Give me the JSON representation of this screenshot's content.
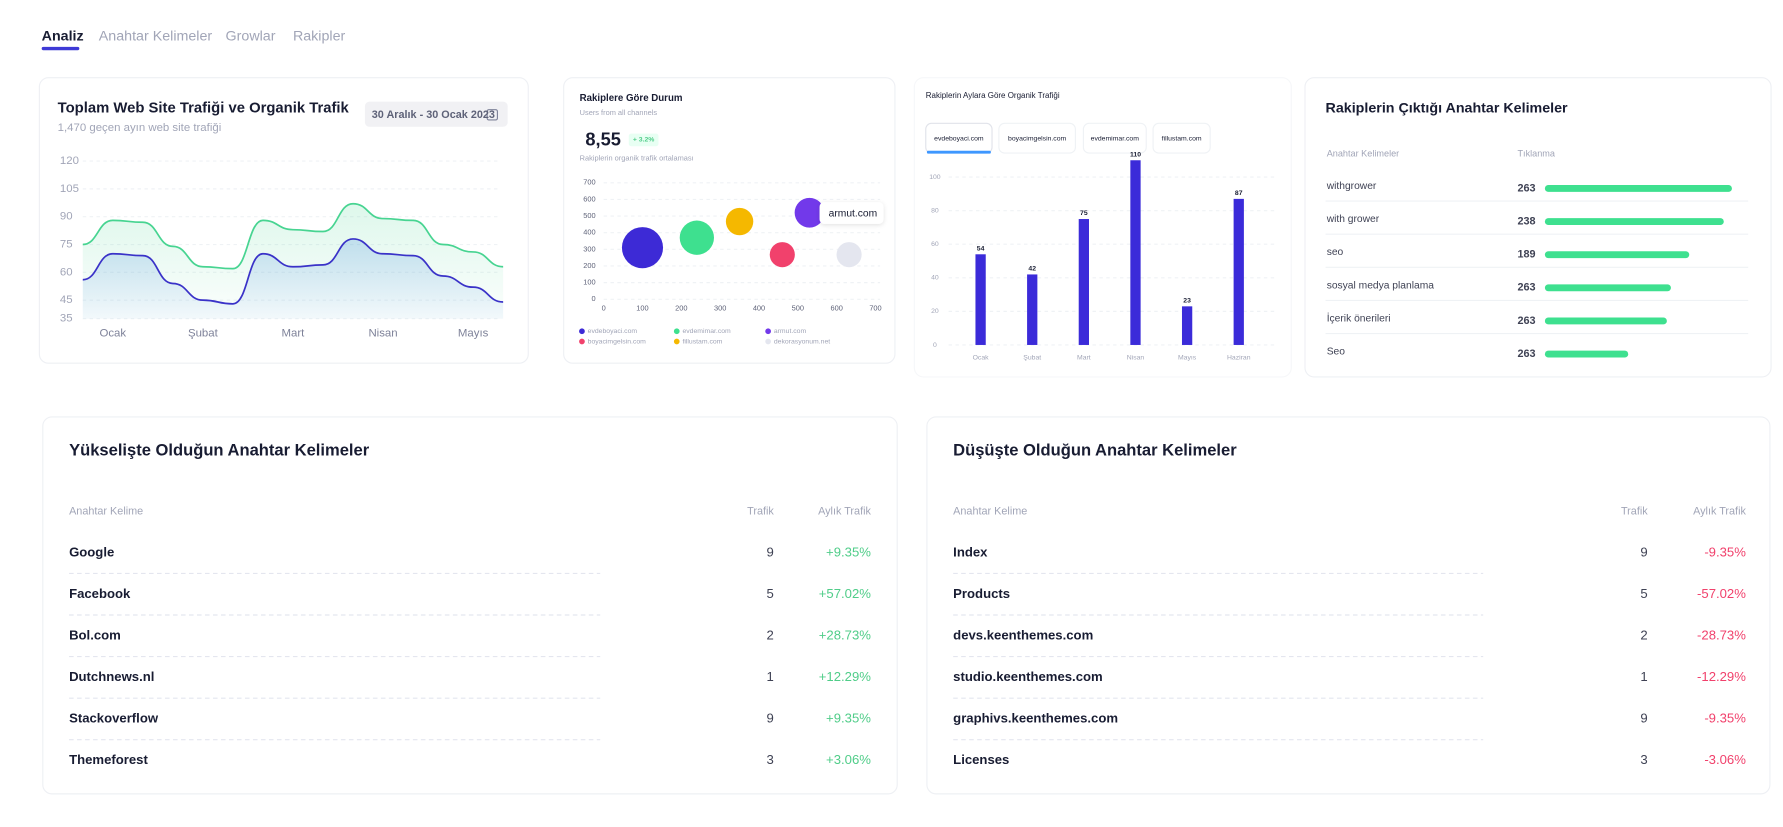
{
  "tabs": [
    "Analiz",
    "Anahtar Kelimeler",
    "Growlar",
    "Rakipler"
  ],
  "chart_data": [
    {
      "type": "line",
      "title": "Toplam Web Site Trafiği ve Organik Trafik",
      "subtitle": "1,470 geçen ayın web site trafiği",
      "date_range": "30 Aralık - 30 Ocak 2023",
      "categories": [
        null,
        "Ocak",
        null,
        null,
        "Şubat",
        null,
        null,
        "Mart",
        null,
        null,
        "Nisan",
        null,
        null,
        "Mayıs",
        null
      ],
      "series": [
        {
          "name": "Web Site Trafiği",
          "color": "#47d491",
          "values": [
            75,
            88,
            87,
            74,
            63,
            62,
            88,
            83,
            82,
            97,
            89,
            88,
            75,
            71,
            63
          ]
        },
        {
          "name": "Organik Trafik",
          "color": "#3a32c8",
          "values": [
            56,
            70,
            69,
            54,
            45,
            43,
            70,
            63,
            64,
            78,
            70,
            69,
            58,
            52,
            44
          ]
        }
      ],
      "ylim": [
        35,
        120
      ],
      "yticks": [
        35,
        45,
        60,
        75,
        90,
        105,
        120
      ],
      "grid": true
    },
    {
      "type": "bubble",
      "title": "Rakiplere Göre Durum",
      "subtitle": "Users from all channels",
      "value_label": "8,55",
      "badge": "+ 3.2%",
      "caption": "Rakiplerin organik trafik ortalaması",
      "series": [
        {
          "name": "evdeboyaci.com",
          "color": "#3d2ad6",
          "x": 100,
          "y": 310,
          "size": 18
        },
        {
          "name": "evdemimar.com",
          "color": "#3ee08f",
          "x": 240,
          "y": 370,
          "size": 15
        },
        {
          "name": "armut.com",
          "color": "#7239ea",
          "x": 530,
          "y": 520,
          "size": 13
        },
        {
          "name": "boyacimgelsin.com",
          "color": "#f1416c",
          "x": 460,
          "y": 268,
          "size": 11
        },
        {
          "name": "fillustam.com",
          "color": "#f5b800",
          "x": 350,
          "y": 467,
          "size": 12
        },
        {
          "name": "dekorasyonum.net",
          "color": "#e4e6ef",
          "x": 632,
          "y": 268,
          "size": 11
        }
      ],
      "xlim": [
        0,
        700
      ],
      "xticks": [
        0,
        100,
        200,
        300,
        400,
        500,
        600,
        700
      ],
      "ylim": [
        0,
        700
      ],
      "yticks": [
        0,
        100,
        200,
        300,
        400,
        500,
        600,
        700
      ],
      "grid": true
    },
    {
      "type": "bar",
      "title": "Rakiplerin Aylara Göre Organik Trafiği",
      "tabs": [
        "evdeboyaci.com",
        "boyacimgelsin.com",
        "evdemimar.com",
        "fillustam.com"
      ],
      "categories": [
        "Ocak",
        "Şubat",
        "Mart",
        "Nisan",
        "Mayıs",
        "Haziran"
      ],
      "values": [
        54,
        42,
        75,
        110,
        23,
        87
      ],
      "color": "#3b2bd9",
      "ylim": [
        0,
        100
      ],
      "yticks": [
        0,
        20,
        40,
        60,
        80,
        100
      ],
      "grid": true
    }
  ],
  "keywords_card": {
    "title": "Rakiplerin Çıktığı Anahtar Kelimeler",
    "headers": [
      "Anahtar Kelimeler",
      "Tıklanma"
    ],
    "color": "#3ee08f",
    "rows": [
      {
        "name": "withgrower",
        "value": 263,
        "progress": 92
      },
      {
        "name": "with grower",
        "value": 238,
        "progress": 88
      },
      {
        "name": "seo",
        "value": 189,
        "progress": 71
      },
      {
        "name": "sosyal medya planlama",
        "value": 263,
        "progress": 62
      },
      {
        "name": "İçerik önerileri",
        "value": 263,
        "progress": 60
      },
      {
        "name": "Seo",
        "value": 263,
        "progress": 41
      }
    ]
  },
  "rising_table": {
    "title": "Yükselişte Olduğun Anahtar Kelimeler",
    "headers": [
      "Anahtar Kelime",
      "Trafik",
      "Aylık Trafik"
    ],
    "color": "#50cd89",
    "rows": [
      [
        "Google",
        9,
        "+9.35%"
      ],
      [
        "Facebook",
        5,
        "+57.02%"
      ],
      [
        "Bol.com",
        2,
        "+28.73%"
      ],
      [
        "Dutchnews.nl",
        1,
        "+12.29%"
      ],
      [
        "Stackoverflow",
        9,
        "+9.35%"
      ],
      [
        "Themeforest",
        3,
        "+3.06%"
      ]
    ]
  },
  "falling_table": {
    "title": "Düşüşte Olduğun Anahtar Kelimeler",
    "headers": [
      "Anahtar Kelime",
      "Trafik",
      "Aylık Trafik"
    ],
    "color": "#f1416c",
    "rows": [
      [
        "Index",
        9,
        "-9.35%"
      ],
      [
        "Products",
        5,
        "-57.02%"
      ],
      [
        "devs.keenthemes.com",
        2,
        "-28.73%"
      ],
      [
        "studio.keenthemes.com",
        1,
        "-12.29%"
      ],
      [
        "graphivs.keenthemes.com",
        9,
        "-9.35%"
      ],
      [
        "Licenses",
        3,
        "-3.06%"
      ]
    ]
  }
}
